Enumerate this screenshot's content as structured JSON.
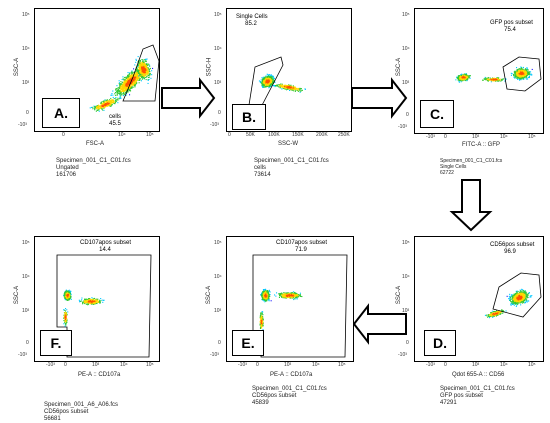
{
  "panels": {
    "a": {
      "label": "A.",
      "xlabel": "FSC-A",
      "ylabel": "SSC-A",
      "gate_name": "cells",
      "gate_value": "45.5",
      "xticks": [
        "0",
        "10⁴",
        "10⁵"
      ],
      "yticks": [
        "-10³",
        "0",
        "10³",
        "10⁴",
        "10⁵"
      ],
      "file_lines": [
        "Specimen_001_C1_C01.fcs",
        "Ungated",
        "161706"
      ]
    },
    "b": {
      "label": "B.",
      "xlabel": "SSC-W",
      "ylabel": "SSC-H",
      "gate_name": "Single Cells",
      "gate_value": "85.2",
      "xticks": [
        "0",
        "50K",
        "100K",
        "150K",
        "200K",
        "250K"
      ],
      "yticks": [
        "-10³",
        "0",
        "10³",
        "10⁴",
        "10⁵"
      ],
      "file_lines": [
        "Specimen_001_C1_C01.fcs",
        "cells",
        "73614"
      ]
    },
    "c": {
      "label": "C.",
      "xlabel": "FITC-A :: GFP",
      "ylabel": "SSC-A",
      "gate_name": "GFP pos subset",
      "gate_value": "75.4",
      "xticks": [
        "-10³",
        "0",
        "10³",
        "10⁴",
        "10⁵"
      ],
      "yticks": [
        "-10³",
        "0",
        "10³",
        "10⁴",
        "10⁵"
      ],
      "file_lines": [
        "Specimen_001_C1_C01.fcs",
        "Single Cells",
        "62722"
      ]
    },
    "d": {
      "label": "D.",
      "xlabel": "Qdot 655-A :: CD56",
      "ylabel": "SSC-A",
      "gate_name": "CD56pos subset",
      "gate_value": "96.9",
      "xticks": [
        "-10³",
        "0",
        "10³",
        "10⁴",
        "10⁵"
      ],
      "yticks": [
        "-10³",
        "0",
        "10³",
        "10⁴",
        "10⁵"
      ],
      "file_lines": [
        "Specimen_001_C1_C01.fcs",
        "GFP pos subset",
        "47291"
      ]
    },
    "e": {
      "label": "E.",
      "xlabel": "PE-A :: CD107a",
      "ylabel": "SSC-A",
      "gate_name": "CD107apos subset",
      "gate_value": "71.9",
      "xticks": [
        "-10³",
        "0",
        "10³",
        "10⁴",
        "10⁵"
      ],
      "yticks": [
        "-10³",
        "0",
        "10³",
        "10⁴",
        "10⁵"
      ],
      "file_lines": [
        "Specimen_001_C1_C01.fcs",
        "CD56pos subset",
        "45839"
      ]
    },
    "f": {
      "label": "F.",
      "xlabel": "PE-A :: CD107a",
      "ylabel": "SSC-A",
      "gate_name": "CD107apos subset",
      "gate_value": "14.4",
      "xticks": [
        "-10³",
        "0",
        "10³",
        "10⁴",
        "10⁵"
      ],
      "yticks": [
        "-10³",
        "0",
        "10³",
        "10⁴",
        "10⁵"
      ],
      "file_lines": [
        "Specimen_001_A6_A06.fcs",
        "CD56pos subset",
        "56681"
      ]
    }
  },
  "colors": {
    "density_low": "#1a1aff",
    "density_mid1": "#00c8ff",
    "density_mid2": "#32c832",
    "density_high1": "#ffd700",
    "density_high2": "#ff5000",
    "arrow_fill": "#ffffff",
    "arrow_stroke": "#000000"
  },
  "icons": {
    "arrow": "hollow-block-arrow",
    "scatter": "density-dot-plot"
  }
}
